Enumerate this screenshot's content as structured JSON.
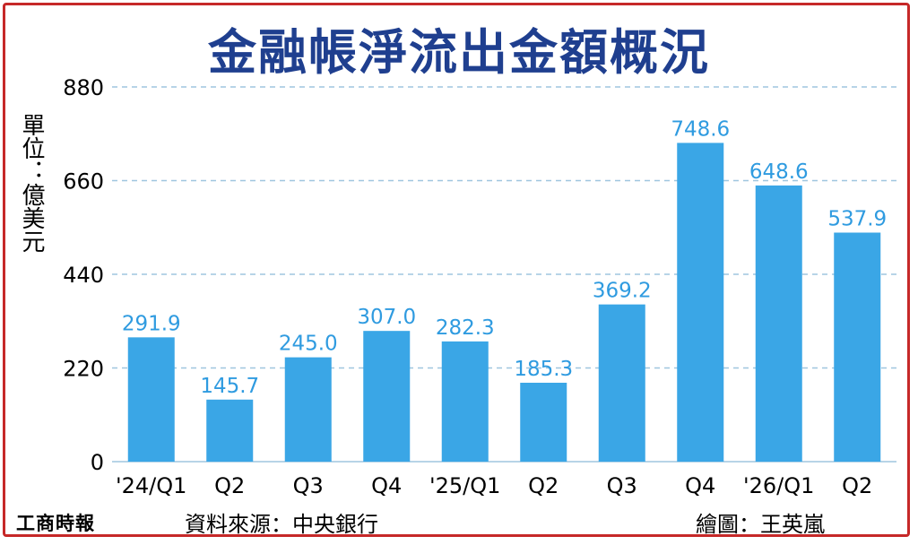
{
  "chart_data": {
    "type": "bar",
    "title": "金融帳淨流出金額概況",
    "ylabel": "單位：億美元",
    "categories": [
      "'24/Q1",
      "Q2",
      "Q3",
      "Q4",
      "'25/Q1",
      "Q2",
      "Q3",
      "Q4",
      "'26/Q1",
      "Q2"
    ],
    "values": [
      291.9,
      145.7,
      245.0,
      307.0,
      282.3,
      185.3,
      369.2,
      748.6,
      648.6,
      537.9
    ],
    "value_labels": [
      "291.9",
      "145.7",
      "245.0",
      "307.0",
      "282.3",
      "185.3",
      "369.2",
      "748.6",
      "648.6",
      "537.9"
    ],
    "yticks": [
      0,
      220,
      440,
      660,
      880
    ],
    "ylim": [
      0,
      880
    ],
    "grid": true,
    "colors": {
      "bar": "#3aa6e6",
      "label": "#2f9be0",
      "title": "#1f3f8f",
      "grid": "#9fc6df",
      "border": "#c62828"
    }
  },
  "source": "資料來源：中央銀行",
  "credit": "繪圖：王英嵐",
  "logo": "工商時報"
}
